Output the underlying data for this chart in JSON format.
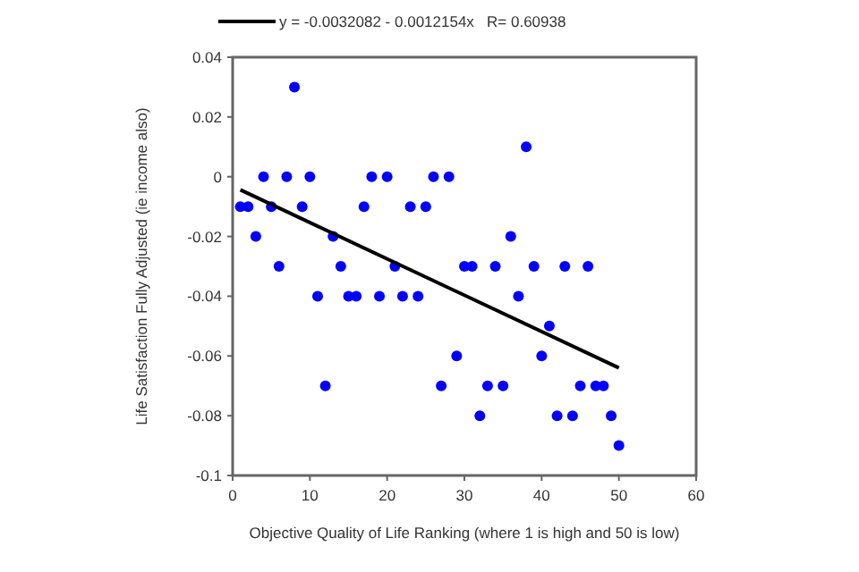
{
  "chart_data": {
    "type": "scatter",
    "xlabel": "Objective Quality of Life Ranking (where 1 is high and 50 is low)",
    "ylabel": "Life Satisfaction Fully Adjusted (ie income also)",
    "xlim": [
      0,
      60
    ],
    "xticks": [
      0,
      10,
      20,
      30,
      40,
      50,
      60
    ],
    "ylim": [
      -0.1,
      0.04
    ],
    "yticks": [
      -0.1,
      -0.08,
      -0.06,
      -0.04,
      -0.02,
      0,
      0.02,
      0.04
    ],
    "grid": false,
    "legend": "top",
    "series": [
      {
        "marker": "circle",
        "color": "#0000ff",
        "x": [
          1,
          2,
          3,
          4,
          5,
          6,
          7,
          8,
          9,
          10,
          11,
          12,
          13,
          14,
          15,
          16,
          17,
          18,
          19,
          20,
          21,
          22,
          23,
          24,
          25,
          26,
          27,
          28,
          29,
          30,
          31,
          32,
          33,
          34,
          35,
          36,
          37,
          38,
          39,
          40,
          41,
          42,
          43,
          44,
          45,
          46,
          47,
          48,
          49,
          50
        ],
        "values": [
          -0.01,
          -0.01,
          -0.02,
          0,
          -0.01,
          -0.03,
          0,
          0.03,
          -0.01,
          0,
          -0.04,
          -0.07,
          -0.02,
          -0.03,
          -0.04,
          -0.04,
          -0.01,
          0,
          -0.04,
          0,
          -0.03,
          -0.04,
          -0.01,
          -0.04,
          -0.01,
          0,
          -0.07,
          0,
          -0.06,
          -0.03,
          -0.03,
          -0.08,
          -0.07,
          -0.03,
          -0.07,
          -0.02,
          -0.04,
          0.01,
          -0.03,
          -0.06,
          -0.05,
          -0.08,
          -0.03,
          -0.08,
          -0.07,
          -0.03,
          -0.07,
          -0.07,
          -0.08,
          -0.09
        ]
      },
      {
        "type": "line",
        "name": "y = -0.0032082 - 0.0012154x   R= 0.60938",
        "color": "#000000",
        "line_style": "solid",
        "x": [
          1,
          50
        ],
        "values": [
          -0.0044,
          -0.064
        ]
      }
    ]
  }
}
